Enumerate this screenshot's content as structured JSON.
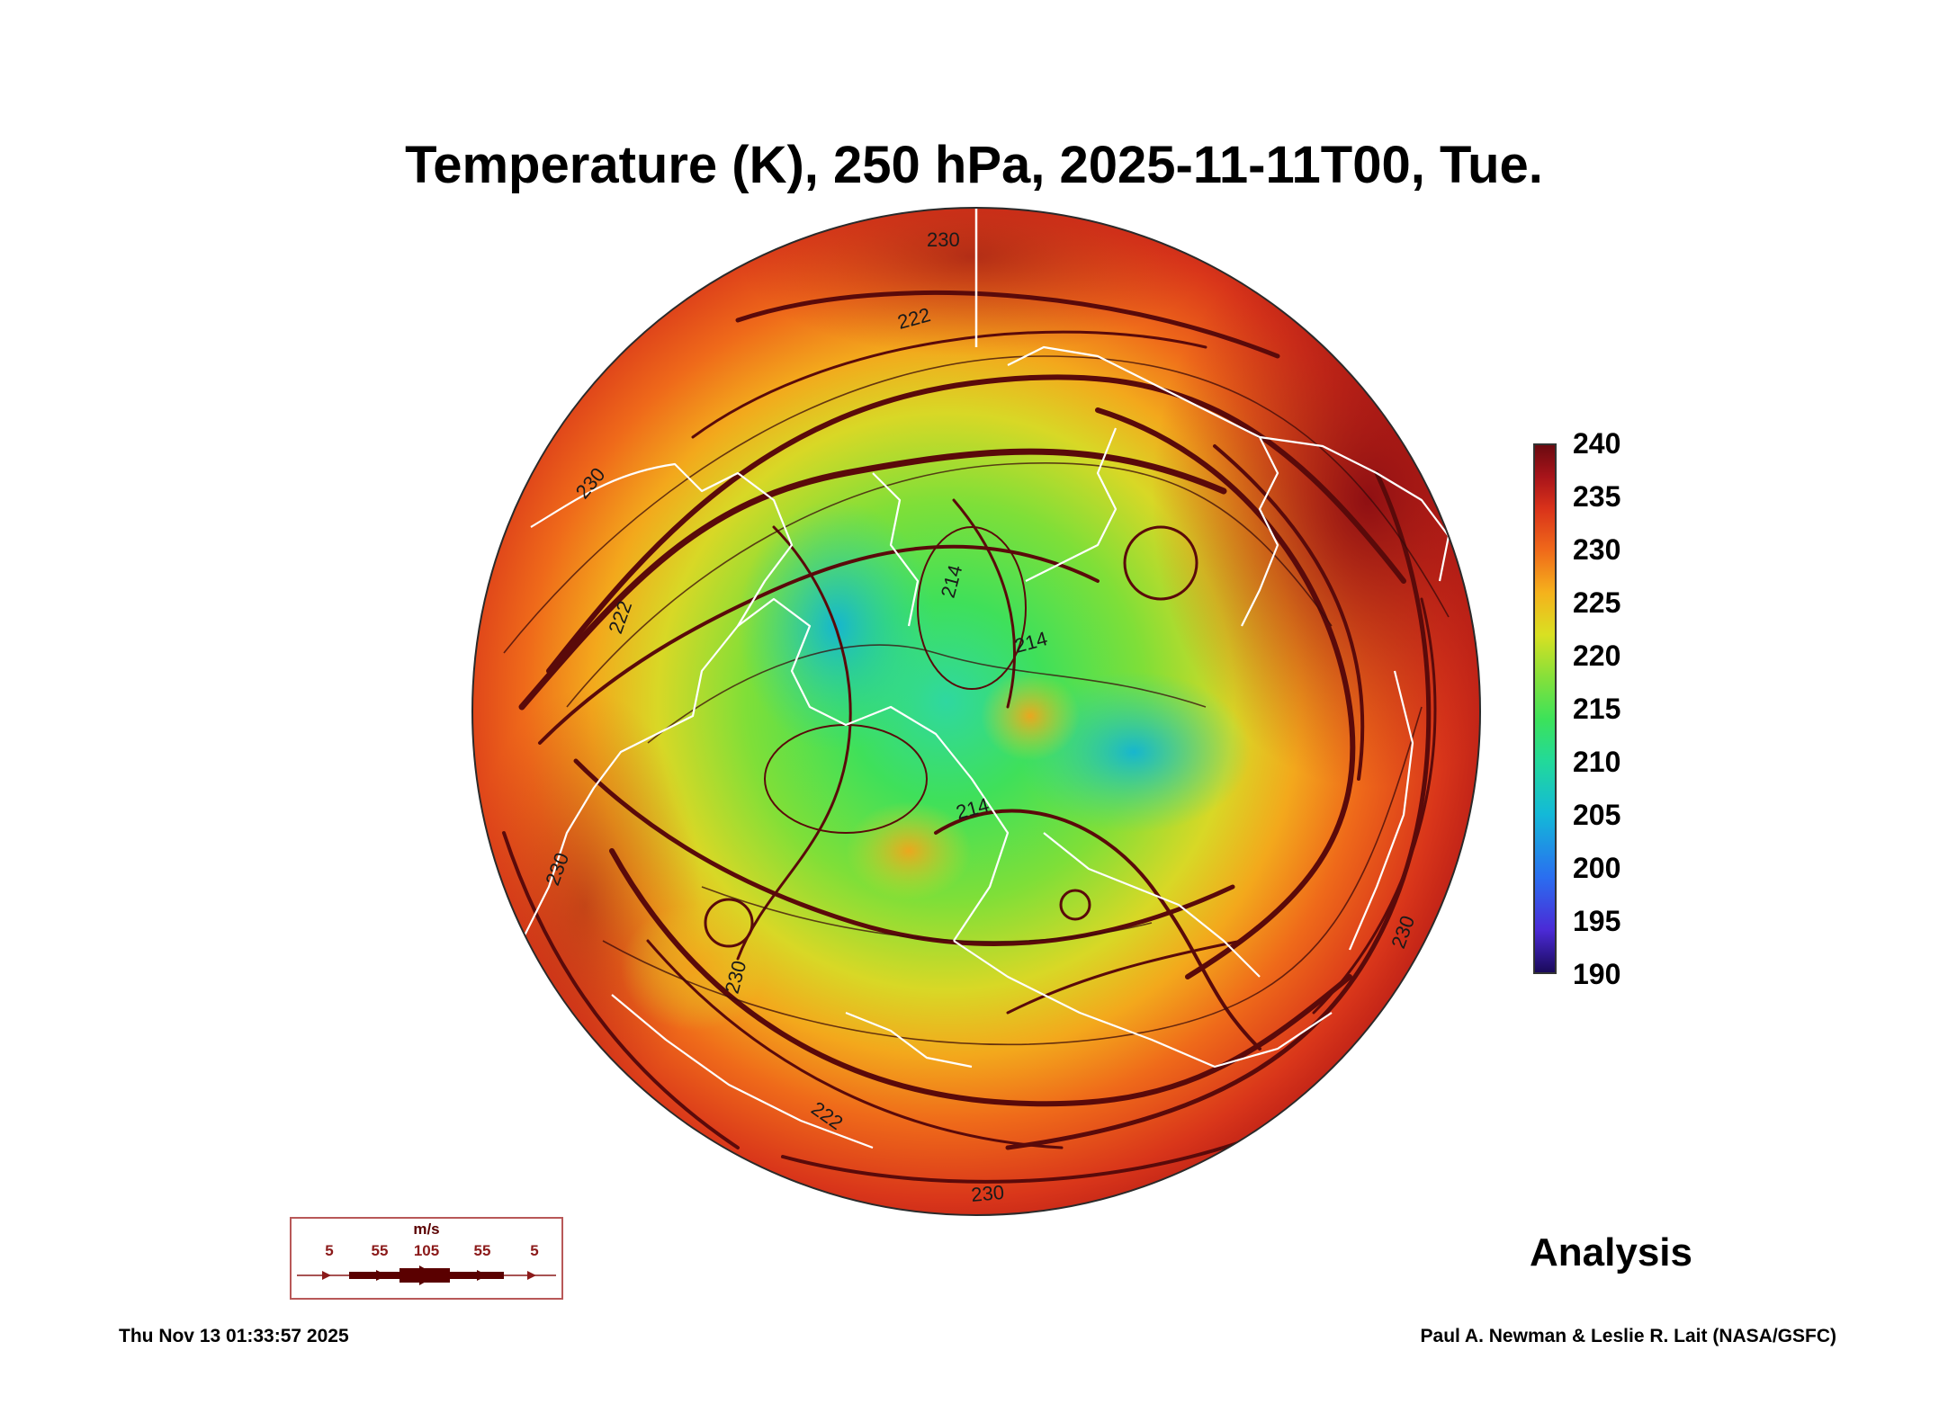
{
  "title": "Temperature (K), 250 hPa, 2025-11-11T00, Tue.",
  "colorbar": {
    "ticks": [
      "240",
      "235",
      "230",
      "225",
      "220",
      "215",
      "210",
      "205",
      "200",
      "195",
      "190"
    ],
    "min": 190,
    "max": 240
  },
  "contour_labels": [
    "230",
    "222",
    "230",
    "222",
    "214",
    "214",
    "214",
    "230",
    "230",
    "222",
    "230",
    "230"
  ],
  "wind_legend": {
    "unit": "m/s",
    "labels": [
      "5",
      "55",
      "105",
      "55",
      "5"
    ]
  },
  "analysis_label": "Analysis",
  "timestamp": "Thu Nov 13 01:33:57 2025",
  "credit": "Paul A. Newman & Leslie R. Lait (NASA/GSFC)",
  "colors": {
    "warm": "#d9321a",
    "hot": "#7a0a10",
    "mid": "#f5b21c",
    "cool": "#3ce25a",
    "cold": "#13b9d8",
    "coastline": "#ffffff",
    "streamline": "#5a0a0a"
  }
}
